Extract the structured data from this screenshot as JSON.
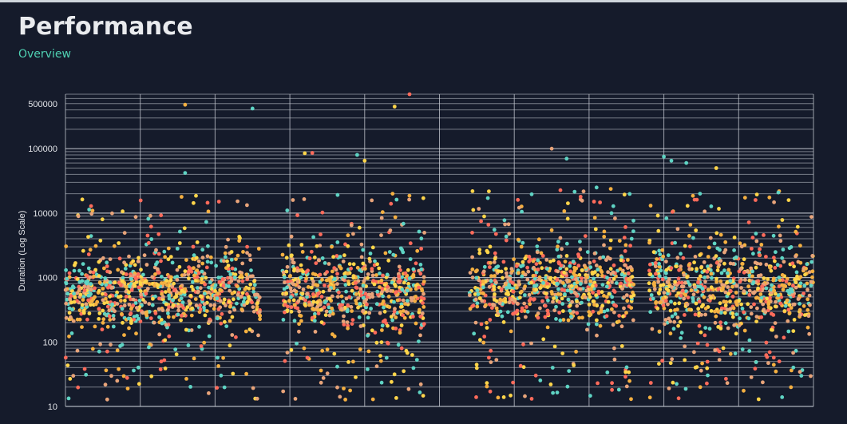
{
  "page": {
    "title": "Performance",
    "subtitle_link": "Overview"
  },
  "colors": {
    "background": "#151b2b",
    "grid": "#c9ced6",
    "accent": "#4fd1b2",
    "series_palette": [
      "#e8a47a",
      "#ffd54a",
      "#5fd4c4",
      "#ff6b5b",
      "#f5b041"
    ]
  },
  "chart_data": {
    "type": "scatter",
    "title": "",
    "xlabel": "",
    "ylabel": "Duration (Log Scale)",
    "yscale": "log",
    "ylim": [
      10,
      700000
    ],
    "yticks": [
      10,
      100,
      1000,
      10000,
      100000,
      500000
    ],
    "ytick_labels": [
      "10",
      "100",
      "1000",
      "10000",
      "100000",
      "500000"
    ],
    "grid": true,
    "x_unlabeled": true,
    "x_gridlines": 11,
    "points_estimated": true,
    "clusters": [
      {
        "x_range": [
          0.0,
          0.26
        ],
        "median": 600,
        "spread": 0.55
      },
      {
        "x_range": [
          0.29,
          0.48
        ],
        "median": 650,
        "spread": 0.6
      },
      {
        "x_range": [
          0.54,
          0.76
        ],
        "median": 750,
        "spread": 0.55
      },
      {
        "x_range": [
          0.78,
          1.0
        ],
        "median": 700,
        "spread": 0.6
      }
    ],
    "outliers": [
      {
        "x": 0.16,
        "y": 480000
      },
      {
        "x": 0.25,
        "y": 420000
      },
      {
        "x": 0.46,
        "y": 700000
      },
      {
        "x": 0.44,
        "y": 450000
      },
      {
        "x": 0.32,
        "y": 85000
      },
      {
        "x": 0.33,
        "y": 86000
      },
      {
        "x": 0.39,
        "y": 80000
      },
      {
        "x": 0.4,
        "y": 65000
      },
      {
        "x": 0.65,
        "y": 100000
      },
      {
        "x": 0.67,
        "y": 70000
      },
      {
        "x": 0.8,
        "y": 75000
      },
      {
        "x": 0.81,
        "y": 65000
      },
      {
        "x": 0.83,
        "y": 60000
      },
      {
        "x": 0.87,
        "y": 50000
      },
      {
        "x": 0.16,
        "y": 42000
      },
      {
        "x": 0.19,
        "y": 14500
      },
      {
        "x": 0.71,
        "y": 25000
      },
      {
        "x": 0.73,
        "y": 10000
      }
    ]
  }
}
